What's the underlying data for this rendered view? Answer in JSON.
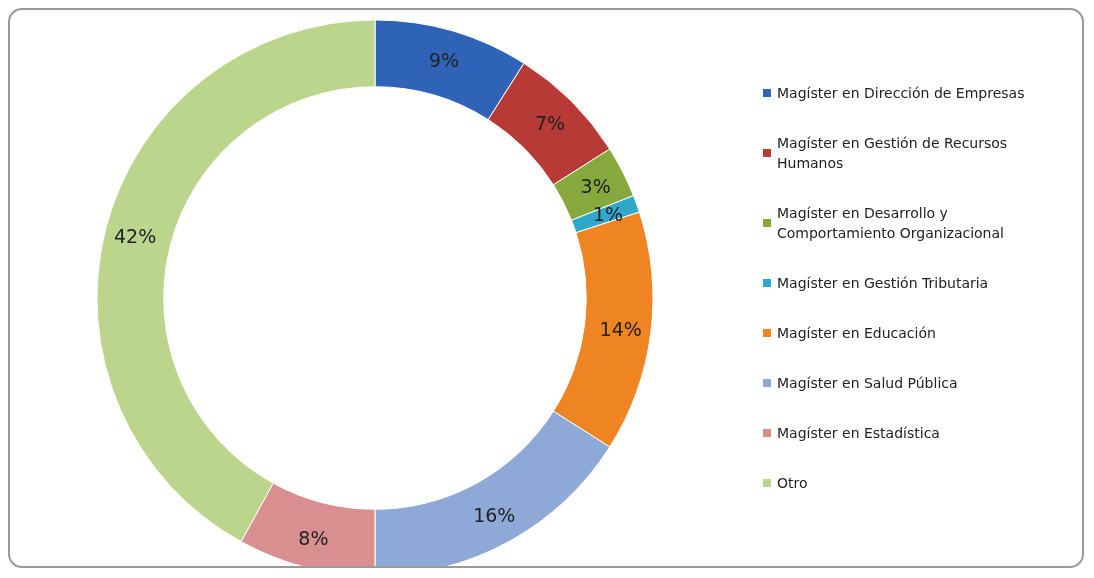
{
  "chart_data": {
    "type": "donut",
    "categories": [
      "Magíster en Dirección de Empresas",
      "Magíster en Gestión de Recursos Humanos",
      "Magíster en Desarrollo y Comportamiento Organizacional",
      "Magíster en Gestión Tributaria",
      "Magíster en Educación",
      "Magíster en Salud Pública",
      "Magíster en Estadística",
      "Otro"
    ],
    "values": [
      9,
      7,
      3,
      1,
      14,
      16,
      8,
      42
    ],
    "colors": [
      "#2e63b8",
      "#b83a37",
      "#86a83c",
      "#2fa8cc",
      "#ee8422",
      "#8ea8d8",
      "#d98f8f",
      "#bcd58c"
    ],
    "value_labels": [
      "9%",
      "7%",
      "3%",
      "1%",
      "14%",
      "16%",
      "8%",
      "42%"
    ],
    "legend": "right"
  }
}
